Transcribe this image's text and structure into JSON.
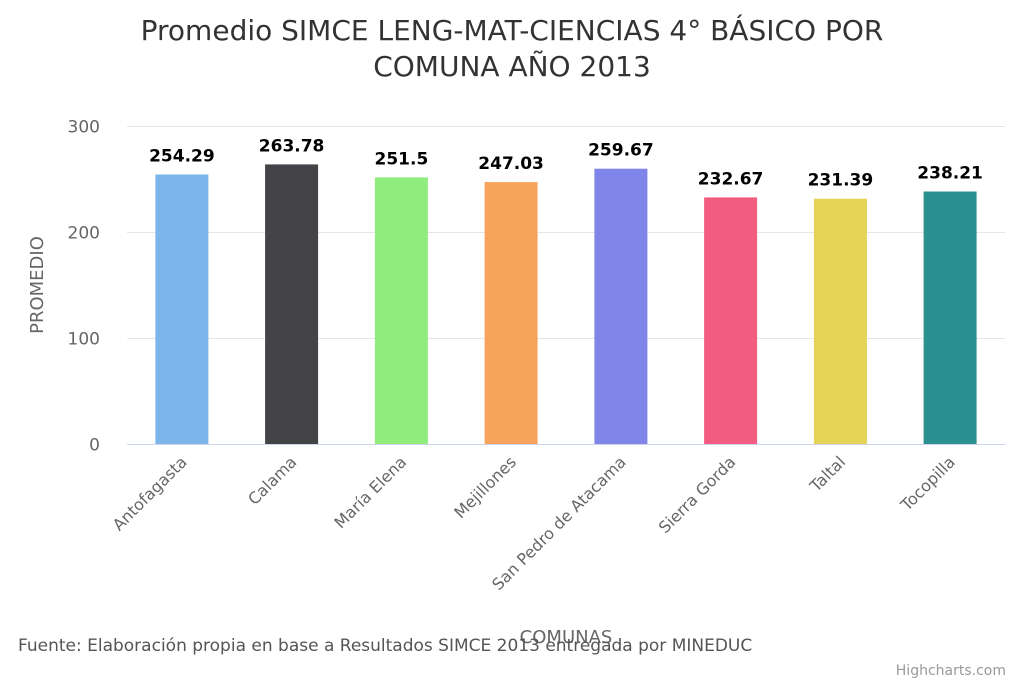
{
  "chart_data": {
    "type": "bar",
    "title_lines": [
      "Promedio SIMCE LENG-MAT-CIENCIAS 4° BÁSICO POR",
      "COMUNA AÑO 2013"
    ],
    "xlabel": "COMUNAS",
    "ylabel": "PROMEDIO",
    "ylim": [
      0,
      300
    ],
    "yticks": [
      0,
      100,
      200,
      300
    ],
    "grid": true,
    "categories": [
      "Antofagasta",
      "Calama",
      "María Elena",
      "Mejillones",
      "San Pedro de Atacama",
      "Sierra Gorda",
      "Taltal",
      "Tocopilla"
    ],
    "values": [
      254.29,
      263.78,
      251.5,
      247.03,
      259.67,
      232.67,
      231.39,
      238.21
    ],
    "value_labels": [
      "254.29",
      "263.78",
      "251.5",
      "247.03",
      "259.67",
      "232.67",
      "231.39",
      "238.21"
    ],
    "colors": [
      "#7cb5ec",
      "#434348",
      "#90ed7d",
      "#f7a35c",
      "#8085e9",
      "#f15c80",
      "#e4d354",
      "#2b908f"
    ],
    "source": "Fuente: Elaboración propia en base a Resultados SIMCE 2013 entregada por MINEDUC",
    "credits": "Highcharts.com"
  }
}
